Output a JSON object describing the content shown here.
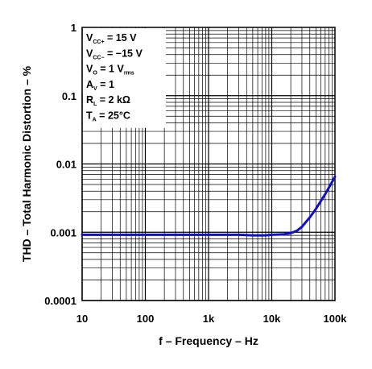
{
  "chart_data": {
    "type": "line",
    "title": "",
    "xlabel": "f – Frequency – Hz",
    "ylabel": "THD – Total Harmonic Distortion – %",
    "xscale": "log",
    "yscale": "log",
    "xlim": [
      10,
      100000
    ],
    "ylim": [
      0.0001,
      1
    ],
    "grid": true,
    "x_ticks": [
      "10",
      "100",
      "1k",
      "10k",
      "100k"
    ],
    "y_ticks": [
      "1",
      "0.1",
      "0.01",
      "0.001",
      "0.0001"
    ],
    "series": [
      {
        "color": "#1010c8",
        "x": [
          10,
          30,
          100,
          300,
          1000,
          3000,
          5000,
          8000,
          10000,
          15000,
          20000,
          25000,
          30000,
          40000,
          50000,
          70000,
          100000
        ],
        "y": [
          0.00092,
          0.00092,
          0.00092,
          0.00092,
          0.00092,
          0.00092,
          0.0009,
          0.0009,
          0.00092,
          0.00093,
          0.00097,
          0.00105,
          0.0012,
          0.00165,
          0.0022,
          0.0036,
          0.0065
        ]
      }
    ],
    "conditions": [
      {
        "main": "V",
        "sub": "CC+",
        "rest": " = 15 V"
      },
      {
        "main": "V",
        "sub": "CC−",
        "rest": " = −15 V"
      },
      {
        "main": "V",
        "sub": "O",
        "rest": " = 1 V",
        "sub2": "rms"
      },
      {
        "main": "A",
        "sub": "V",
        "rest": " = 1"
      },
      {
        "main": "R",
        "sub": "L",
        "rest": " = 2 kΩ"
      },
      {
        "main": "T",
        "sub": "A",
        "rest": " = 25°C"
      }
    ]
  }
}
